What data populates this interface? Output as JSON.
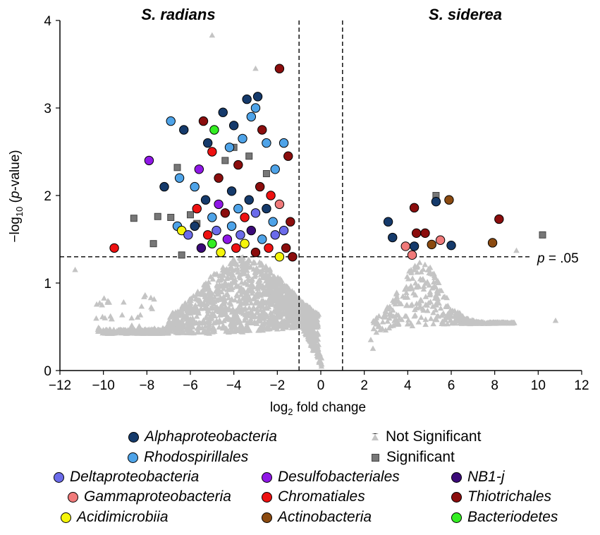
{
  "chart_data": {
    "type": "scatter",
    "title_left": "S. radians",
    "title_right": "S. siderea",
    "xlabel_main": "log",
    "xlabel_sub": "2",
    "xlabel_rest": " fold change",
    "ylabel_pre": "−log",
    "ylabel_sub": "10",
    "ylabel_open": " (",
    "ylabel_p": "p",
    "ylabel_rest": "-value)",
    "xlim": [
      -12,
      12
    ],
    "ylim": [
      0,
      4
    ],
    "xticks": [
      "−12",
      "−10",
      "−8",
      "−6",
      "−4",
      "−2",
      "0",
      "2",
      "4",
      "6",
      "8",
      "10",
      "12"
    ],
    "xtick_values": [
      -12,
      -10,
      -8,
      -6,
      -4,
      -2,
      0,
      2,
      4,
      6,
      8,
      10,
      12
    ],
    "yticks": [
      "0",
      "1",
      "2",
      "3",
      "4"
    ],
    "ytick_values": [
      0,
      1,
      2,
      3,
      4
    ],
    "threshold_y": 1.3,
    "threshold_label_p": "p",
    "threshold_label_rest": " = .05",
    "fold_cut": [
      -1,
      1
    ],
    "colors": {
      "Alphaproteobacteria": "#153a6b",
      "Rhodospirillales": "#4ea3e8",
      "Deltaproteobacteria": "#6b6bea",
      "Desulfobacteriales": "#8f17e6",
      "NB1-j": "#3b0a78",
      "Gammaproteobacteria": "#f07a7a",
      "Chromatiales": "#ee1111",
      "Thiotrichales": "#8b0d0d",
      "Acidimicrobiia": "#f5f50a",
      "Actinobacteria": "#8b4a10",
      "Bacteriodetes": "#33ee22",
      "Not Significant": "#c4c4c4",
      "Significant": "#777777"
    },
    "significant_points": [
      {
        "x": -9.5,
        "y": 1.4,
        "g": "Chromatiales"
      },
      {
        "x": -7.9,
        "y": 2.4,
        "g": "Desulfobacteriales"
      },
      {
        "x": -7.2,
        "y": 2.1,
        "g": "Alphaproteobacteria"
      },
      {
        "x": -6.9,
        "y": 2.85,
        "g": "Rhodospirillales"
      },
      {
        "x": -6.5,
        "y": 2.2,
        "g": "Rhodospirillales"
      },
      {
        "x": -6.3,
        "y": 2.75,
        "g": "Alphaproteobacteria"
      },
      {
        "x": -5.8,
        "y": 2.1,
        "g": "Rhodospirillales"
      },
      {
        "x": -5.6,
        "y": 2.3,
        "g": "Desulfobacteriales"
      },
      {
        "x": -5.4,
        "y": 2.85,
        "g": "Thiotrichales"
      },
      {
        "x": -5.2,
        "y": 2.6,
        "g": "Alphaproteobacteria"
      },
      {
        "x": -5.0,
        "y": 2.5,
        "g": "Chromatiales"
      },
      {
        "x": -4.9,
        "y": 2.75,
        "g": "Bacteriodetes"
      },
      {
        "x": -4.7,
        "y": 2.2,
        "g": "Thiotrichales"
      },
      {
        "x": -4.5,
        "y": 2.95,
        "g": "Alphaproteobacteria"
      },
      {
        "x": -4.2,
        "y": 2.55,
        "g": "Rhodospirillales"
      },
      {
        "x": -4.0,
        "y": 2.8,
        "g": "Alphaproteobacteria"
      },
      {
        "x": -3.8,
        "y": 2.35,
        "g": "Thiotrichales"
      },
      {
        "x": -3.6,
        "y": 2.65,
        "g": "Rhodospirillales"
      },
      {
        "x": -3.4,
        "y": 3.1,
        "g": "Alphaproteobacteria"
      },
      {
        "x": -3.2,
        "y": 2.9,
        "g": "Rhodospirillales"
      },
      {
        "x": -3.0,
        "y": 3.0,
        "g": "Rhodospirillales"
      },
      {
        "x": -2.9,
        "y": 3.13,
        "g": "Alphaproteobacteria"
      },
      {
        "x": -2.7,
        "y": 2.75,
        "g": "Thiotrichales"
      },
      {
        "x": -2.5,
        "y": 2.6,
        "g": "Rhodospirillales"
      },
      {
        "x": -2.3,
        "y": 2.0,
        "g": "Chromatiales"
      },
      {
        "x": -2.1,
        "y": 2.3,
        "g": "Rhodospirillales"
      },
      {
        "x": -1.9,
        "y": 3.45,
        "g": "Thiotrichales"
      },
      {
        "x": -1.7,
        "y": 2.6,
        "g": "Rhodospirillales"
      },
      {
        "x": -1.5,
        "y": 2.45,
        "g": "Thiotrichales"
      },
      {
        "x": -1.4,
        "y": 1.7,
        "g": "Thiotrichales"
      },
      {
        "x": -6.6,
        "y": 1.65,
        "g": "Rhodospirillales"
      },
      {
        "x": -6.4,
        "y": 1.6,
        "g": "Acidimicrobiia"
      },
      {
        "x": -6.1,
        "y": 1.55,
        "g": "Deltaproteobacteria"
      },
      {
        "x": -5.8,
        "y": 1.65,
        "g": "Alphaproteobacteria"
      },
      {
        "x": -5.5,
        "y": 1.4,
        "g": "NB1-j"
      },
      {
        "x": -5.2,
        "y": 1.55,
        "g": "Chromatiales"
      },
      {
        "x": -5.0,
        "y": 1.45,
        "g": "Bacteriodetes"
      },
      {
        "x": -4.8,
        "y": 1.6,
        "g": "Deltaproteobacteria"
      },
      {
        "x": -4.6,
        "y": 1.35,
        "g": "Acidimicrobiia"
      },
      {
        "x": -4.3,
        "y": 1.5,
        "g": "Desulfobacteriales"
      },
      {
        "x": -4.1,
        "y": 1.65,
        "g": "Rhodospirillales"
      },
      {
        "x": -3.9,
        "y": 1.4,
        "g": "Chromatiales"
      },
      {
        "x": -3.7,
        "y": 1.55,
        "g": "Deltaproteobacteria"
      },
      {
        "x": -3.5,
        "y": 1.45,
        "g": "Acidimicrobiia"
      },
      {
        "x": -3.2,
        "y": 1.6,
        "g": "NB1-j"
      },
      {
        "x": -3.0,
        "y": 1.35,
        "g": "Thiotrichales"
      },
      {
        "x": -2.7,
        "y": 1.5,
        "g": "Rhodospirillales"
      },
      {
        "x": -2.4,
        "y": 1.4,
        "g": "Chromatiales"
      },
      {
        "x": -2.1,
        "y": 1.55,
        "g": "Deltaproteobacteria"
      },
      {
        "x": -1.9,
        "y": 1.3,
        "g": "Acidimicrobiia"
      },
      {
        "x": -1.6,
        "y": 1.4,
        "g": "Thiotrichales"
      },
      {
        "x": -1.3,
        "y": 1.3,
        "g": "Thiotrichales"
      },
      {
        "x": -5.7,
        "y": 1.85,
        "g": "Chromatiales"
      },
      {
        "x": -5.3,
        "y": 1.95,
        "g": "Alphaproteobacteria"
      },
      {
        "x": -5.0,
        "y": 1.75,
        "g": "Rhodospirillales"
      },
      {
        "x": -4.7,
        "y": 1.9,
        "g": "Desulfobacteriales"
      },
      {
        "x": -4.4,
        "y": 1.8,
        "g": "Thiotrichales"
      },
      {
        "x": -4.1,
        "y": 2.05,
        "g": "Alphaproteobacteria"
      },
      {
        "x": -3.8,
        "y": 1.85,
        "g": "Rhodospirillales"
      },
      {
        "x": -3.5,
        "y": 1.75,
        "g": "Chromatiales"
      },
      {
        "x": -3.3,
        "y": 1.95,
        "g": "Alphaproteobacteria"
      },
      {
        "x": -3.0,
        "y": 1.8,
        "g": "Deltaproteobacteria"
      },
      {
        "x": -2.8,
        "y": 2.1,
        "g": "Thiotrichales"
      },
      {
        "x": -2.5,
        "y": 1.85,
        "g": "Alphaproteobacteria"
      },
      {
        "x": -2.2,
        "y": 1.7,
        "g": "Rhodospirillales"
      },
      {
        "x": -1.9,
        "y": 1.9,
        "g": "Gammaproteobacteria"
      },
      {
        "x": -1.7,
        "y": 1.6,
        "g": "Deltaproteobacteria"
      },
      {
        "x": 3.1,
        "y": 1.7,
        "g": "Alphaproteobacteria"
      },
      {
        "x": 3.3,
        "y": 1.52,
        "g": "Alphaproteobacteria"
      },
      {
        "x": 3.9,
        "y": 1.42,
        "g": "Gammaproteobacteria"
      },
      {
        "x": 4.2,
        "y": 1.32,
        "g": "Gammaproteobacteria"
      },
      {
        "x": 4.3,
        "y": 1.86,
        "g": "Thiotrichales"
      },
      {
        "x": 4.3,
        "y": 1.42,
        "g": "Alphaproteobacteria"
      },
      {
        "x": 4.4,
        "y": 1.57,
        "g": "Thiotrichales"
      },
      {
        "x": 4.8,
        "y": 1.57,
        "g": "Thiotrichales"
      },
      {
        "x": 5.1,
        "y": 1.44,
        "g": "Actinobacteria"
      },
      {
        "x": 5.3,
        "y": 1.93,
        "g": "Alphaproteobacteria"
      },
      {
        "x": 5.5,
        "y": 1.49,
        "g": "Gammaproteobacteria"
      },
      {
        "x": 5.9,
        "y": 1.95,
        "g": "Actinobacteria"
      },
      {
        "x": 6.0,
        "y": 1.43,
        "g": "Alphaproteobacteria"
      },
      {
        "x": 7.9,
        "y": 1.46,
        "g": "Actinobacteria"
      },
      {
        "x": 8.2,
        "y": 1.73,
        "g": "Thiotrichales"
      }
    ],
    "significant_squares": [
      {
        "x": -8.6,
        "y": 1.74
      },
      {
        "x": -7.7,
        "y": 1.45
      },
      {
        "x": -7.5,
        "y": 1.76
      },
      {
        "x": -6.9,
        "y": 1.75
      },
      {
        "x": -6.6,
        "y": 2.32
      },
      {
        "x": -6.4,
        "y": 1.32
      },
      {
        "x": -6.0,
        "y": 1.78
      },
      {
        "x": -5.7,
        "y": 1.68
      },
      {
        "x": -4.4,
        "y": 2.4
      },
      {
        "x": -4.0,
        "y": 2.55
      },
      {
        "x": -3.3,
        "y": 2.45
      },
      {
        "x": -2.5,
        "y": 2.25
      },
      {
        "x": 5.3,
        "y": 2.0
      },
      {
        "x": 10.2,
        "y": 1.55
      }
    ],
    "nonsig_extra": [
      {
        "x": -5.0,
        "y": 3.83
      },
      {
        "x": -3.0,
        "y": 3.45
      },
      {
        "x": -11.3,
        "y": 1.15
      },
      {
        "x": 10.8,
        "y": 0.57
      },
      {
        "x": 9.0,
        "y": 1.37
      },
      {
        "x": 2.3,
        "y": 0.35
      },
      {
        "x": 2.4,
        "y": 0.25
      }
    ],
    "legend": [
      {
        "label": "Alphaproteobacteria",
        "kind": "circle",
        "italic": true
      },
      {
        "label": "Rhodospirillales",
        "kind": "circle",
        "italic": true
      },
      {
        "label": "Not Significant",
        "kind": "triangle",
        "italic": false
      },
      {
        "label": "Significant",
        "kind": "square",
        "italic": false
      },
      {
        "label": "Deltaproteobacteria",
        "kind": "circle",
        "italic": true
      },
      {
        "label": "Desulfobacteriales",
        "kind": "circle",
        "italic": true
      },
      {
        "label": "NB1-j",
        "kind": "circle",
        "italic": true
      },
      {
        "label": "Gammaproteobacteria",
        "kind": "circle",
        "italic": true
      },
      {
        "label": "Chromatiales",
        "kind": "circle",
        "italic": true
      },
      {
        "label": "Thiotrichales",
        "kind": "circle",
        "italic": true
      },
      {
        "label": "Acidimicrobiia",
        "kind": "circle",
        "italic": true
      },
      {
        "label": "Actinobacteria",
        "kind": "circle",
        "italic": true
      },
      {
        "label": "Bacteriodetes",
        "kind": "circle",
        "italic": true
      }
    ]
  }
}
